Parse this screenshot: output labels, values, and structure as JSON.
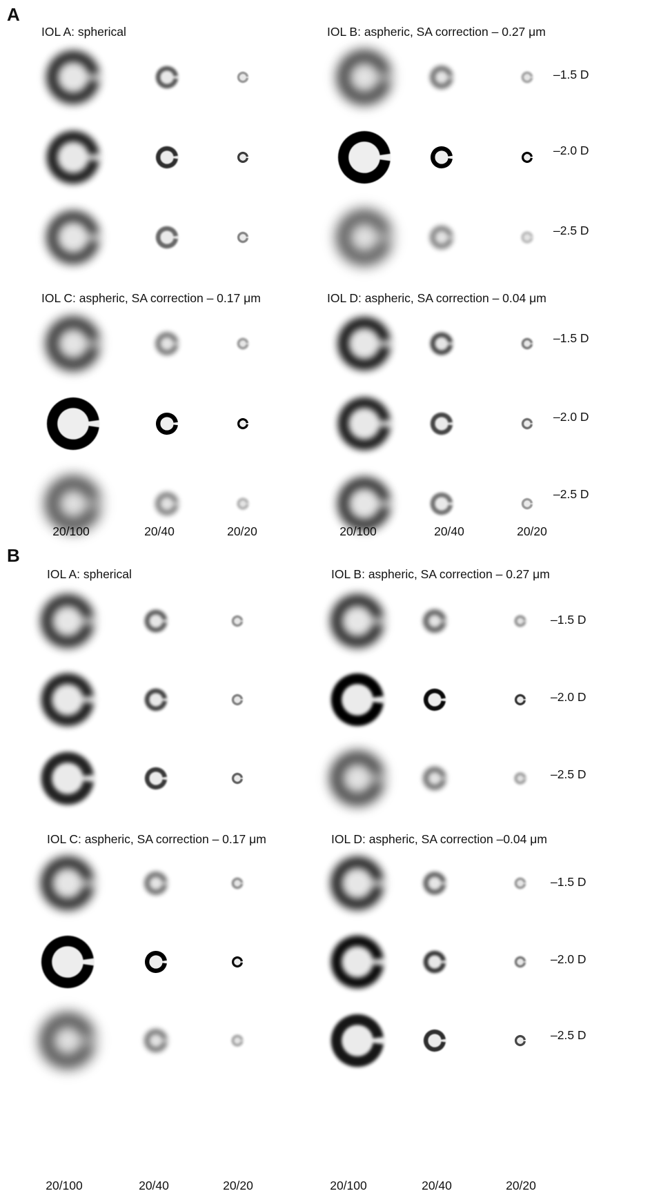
{
  "panels": [
    {
      "letter": "A",
      "groups": [
        {
          "title": "IOL A: spherical",
          "rows": [
            {
              "label": "",
              "cells": [
                {
                  "blur": 0.28,
                  "intensity": 0.85
                },
                {
                  "blur": 0.22,
                  "intensity": 0.6
                },
                {
                  "blur": 0.18,
                  "intensity": 0.35
                }
              ]
            },
            {
              "label": "",
              "cells": [
                {
                  "blur": 0.22,
                  "intensity": 0.85
                },
                {
                  "blur": 0.1,
                  "intensity": 0.8
                },
                {
                  "blur": 0.05,
                  "intensity": 0.75
                }
              ]
            },
            {
              "label": "",
              "cells": [
                {
                  "blur": 0.3,
                  "intensity": 0.75
                },
                {
                  "blur": 0.15,
                  "intensity": 0.55
                },
                {
                  "blur": 0.1,
                  "intensity": 0.45
                }
              ]
            }
          ]
        },
        {
          "title": "IOL B: aspheric, SA correction – 0.27 μm",
          "rows": [
            {
              "label": "–1.5 D",
              "cells": [
                {
                  "blur": 0.4,
                  "intensity": 0.8
                },
                {
                  "blur": 0.35,
                  "intensity": 0.55
                },
                {
                  "blur": 0.3,
                  "intensity": 0.3
                }
              ]
            },
            {
              "label": "–2.0 D",
              "cells": [
                {
                  "blur": 0.02,
                  "intensity": 1.0
                },
                {
                  "blur": 0.02,
                  "intensity": 1.0
                },
                {
                  "blur": 0.02,
                  "intensity": 1.0
                }
              ]
            },
            {
              "label": "–2.5 D",
              "cells": [
                {
                  "blur": 0.45,
                  "intensity": 0.75
                },
                {
                  "blur": 0.4,
                  "intensity": 0.45
                },
                {
                  "blur": 0.35,
                  "intensity": 0.2
                }
              ]
            }
          ]
        },
        {
          "title": "IOL C: aspheric, SA correction – 0.17 μm",
          "rows": [
            {
              "label": "",
              "cells": [
                {
                  "blur": 0.35,
                  "intensity": 0.85
                },
                {
                  "blur": 0.35,
                  "intensity": 0.5
                },
                {
                  "blur": 0.3,
                  "intensity": 0.35
                }
              ]
            },
            {
              "label": "",
              "cells": [
                {
                  "blur": 0.02,
                  "intensity": 1.0
                },
                {
                  "blur": 0.02,
                  "intensity": 1.0
                },
                {
                  "blur": 0.02,
                  "intensity": 1.0
                }
              ]
            },
            {
              "label": "",
              "cells": [
                {
                  "blur": 0.45,
                  "intensity": 0.8
                },
                {
                  "blur": 0.4,
                  "intensity": 0.45
                },
                {
                  "blur": 0.35,
                  "intensity": 0.25
                }
              ]
            }
          ]
        },
        {
          "title": "IOL D: aspheric, SA correction – 0.04 μm",
          "rows": [
            {
              "label": "–1.5 D",
              "cells": [
                {
                  "blur": 0.25,
                  "intensity": 0.9
                },
                {
                  "blur": 0.28,
                  "intensity": 0.7
                },
                {
                  "blur": 0.22,
                  "intensity": 0.5
                }
              ]
            },
            {
              "label": "–2.0 D",
              "cells": [
                {
                  "blur": 0.22,
                  "intensity": 0.85
                },
                {
                  "blur": 0.14,
                  "intensity": 0.7
                },
                {
                  "blur": 0.1,
                  "intensity": 0.55
                }
              ]
            },
            {
              "label": "–2.5 D",
              "cells": [
                {
                  "blur": 0.3,
                  "intensity": 0.8
                },
                {
                  "blur": 0.2,
                  "intensity": 0.5
                },
                {
                  "blur": 0.15,
                  "intensity": 0.35
                }
              ]
            }
          ]
        }
      ],
      "acuity": [
        "20/100",
        "20/40",
        "20/20"
      ]
    },
    {
      "letter": "B",
      "groups": [
        {
          "title": "IOL A: spherical",
          "rows": [
            {
              "label": "",
              "cells": [
                {
                  "blur": 0.3,
                  "intensity": 0.85
                },
                {
                  "blur": 0.28,
                  "intensity": 0.6
                },
                {
                  "blur": 0.22,
                  "intensity": 0.4
                }
              ]
            },
            {
              "label": "",
              "cells": [
                {
                  "blur": 0.2,
                  "intensity": 0.85
                },
                {
                  "blur": 0.22,
                  "intensity": 0.7
                },
                {
                  "blur": 0.18,
                  "intensity": 0.45
                }
              ]
            },
            {
              "label": "",
              "cells": [
                {
                  "blur": 0.15,
                  "intensity": 0.85
                },
                {
                  "blur": 0.12,
                  "intensity": 0.75
                },
                {
                  "blur": 0.1,
                  "intensity": 0.6
                }
              ]
            }
          ]
        },
        {
          "title": "IOL B: aspheric, SA correction – 0.27 μm",
          "rows": [
            {
              "label": "–1.5 D",
              "cells": [
                {
                  "blur": 0.3,
                  "intensity": 0.85
                },
                {
                  "blur": 0.35,
                  "intensity": 0.65
                },
                {
                  "blur": 0.35,
                  "intensity": 0.4
                }
              ]
            },
            {
              "label": "–2.0 D",
              "cells": [
                {
                  "blur": 0.12,
                  "intensity": 1.0
                },
                {
                  "blur": 0.1,
                  "intensity": 0.95
                },
                {
                  "blur": 0.1,
                  "intensity": 0.8
                }
              ]
            },
            {
              "label": "–2.5 D",
              "cells": [
                {
                  "blur": 0.4,
                  "intensity": 0.8
                },
                {
                  "blur": 0.4,
                  "intensity": 0.55
                },
                {
                  "blur": 0.4,
                  "intensity": 0.35
                }
              ]
            }
          ]
        },
        {
          "title": "IOL C: aspheric, SA correction – 0.17 μm",
          "rows": [
            {
              "label": "",
              "cells": [
                {
                  "blur": 0.32,
                  "intensity": 0.85
                },
                {
                  "blur": 0.35,
                  "intensity": 0.55
                },
                {
                  "blur": 0.3,
                  "intensity": 0.4
                }
              ]
            },
            {
              "label": "",
              "cells": [
                {
                  "blur": 0.04,
                  "intensity": 1.0
                },
                {
                  "blur": 0.04,
                  "intensity": 1.0
                },
                {
                  "blur": 0.04,
                  "intensity": 0.95
                }
              ]
            },
            {
              "label": "",
              "cells": [
                {
                  "blur": 0.45,
                  "intensity": 0.8
                },
                {
                  "blur": 0.4,
                  "intensity": 0.5
                },
                {
                  "blur": 0.35,
                  "intensity": 0.3
                }
              ]
            }
          ]
        },
        {
          "title": "IOL D: aspheric, SA correction –0.04 μm",
          "rows": [
            {
              "label": "–1.5 D",
              "cells": [
                {
                  "blur": 0.28,
                  "intensity": 0.85
                },
                {
                  "blur": 0.3,
                  "intensity": 0.6
                },
                {
                  "blur": 0.28,
                  "intensity": 0.35
                }
              ]
            },
            {
              "label": "–2.0 D",
              "cells": [
                {
                  "blur": 0.18,
                  "intensity": 0.95
                },
                {
                  "blur": 0.22,
                  "intensity": 0.75
                },
                {
                  "blur": 0.22,
                  "intensity": 0.5
                }
              ]
            },
            {
              "label": "–2.5 D",
              "cells": [
                {
                  "blur": 0.12,
                  "intensity": 0.9
                },
                {
                  "blur": 0.1,
                  "intensity": 0.8
                },
                {
                  "blur": 0.08,
                  "intensity": 0.7
                }
              ]
            }
          ]
        }
      ],
      "acuity": [
        "20/100",
        "20/40",
        "20/20"
      ]
    }
  ]
}
